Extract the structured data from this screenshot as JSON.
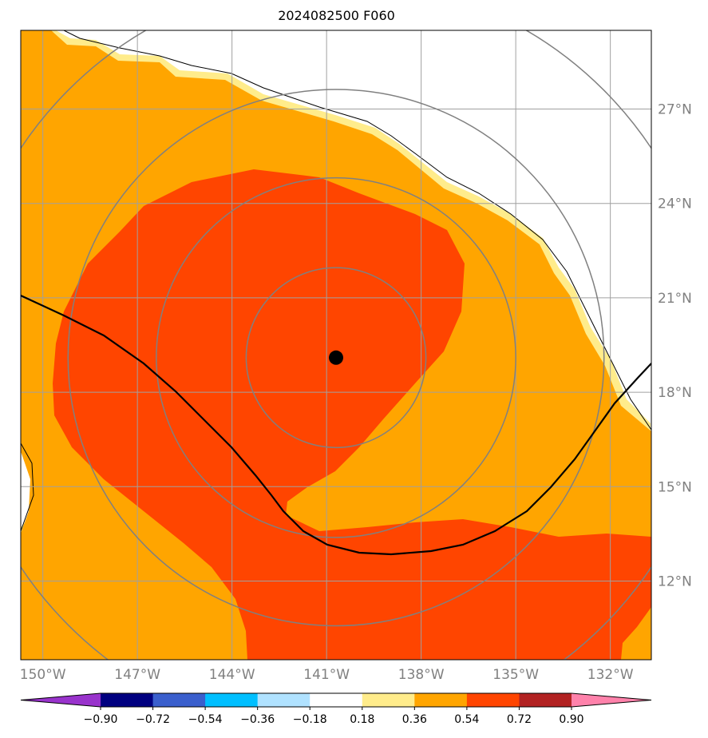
{
  "title": "2024082500 F060",
  "map": {
    "lon_range": [
      -150.7,
      -130.7
    ],
    "lat_range": [
      9.5,
      29.5
    ],
    "lon_ticks": [
      {
        "value": -150,
        "label": "150°W"
      },
      {
        "value": -147,
        "label": "147°W"
      },
      {
        "value": -144,
        "label": "144°W"
      },
      {
        "value": -141,
        "label": "141°W"
      },
      {
        "value": -138,
        "label": "138°W"
      },
      {
        "value": -135,
        "label": "135°W"
      },
      {
        "value": -132,
        "label": "132°W"
      }
    ],
    "lat_ticks": [
      {
        "value": 12,
        "label": "12°N"
      },
      {
        "value": 15,
        "label": "15°N"
      },
      {
        "value": 18,
        "label": "18°N"
      },
      {
        "value": 21,
        "label": "21°N"
      },
      {
        "value": 24,
        "label": "24°N"
      },
      {
        "value": 27,
        "label": "27°N"
      }
    ],
    "storm_center": {
      "lon": -140.7,
      "lat": 19.1
    },
    "range_rings_deg": [
      2.85,
      5.7,
      8.5,
      12.0
    ],
    "colors": {
      "grid": "#a0a0a0",
      "rings": "#808080",
      "track": "#000000",
      "storm_marker": "#000000",
      "coast": "#000000"
    }
  },
  "colorbar": {
    "bins": [
      {
        "from": null,
        "to": -0.9,
        "color": "#9933cc"
      },
      {
        "from": -0.9,
        "to": -0.72,
        "color": "#000080"
      },
      {
        "from": -0.72,
        "to": -0.54,
        "color": "#3a5fcd"
      },
      {
        "from": -0.54,
        "to": -0.36,
        "color": "#00bfff"
      },
      {
        "from": -0.36,
        "to": -0.18,
        "color": "#b0e2ff"
      },
      {
        "from": -0.18,
        "to": 0.18,
        "color": "#ffffff"
      },
      {
        "from": 0.18,
        "to": 0.36,
        "color": "#ffec8b"
      },
      {
        "from": 0.36,
        "to": 0.54,
        "color": "#ffa500"
      },
      {
        "from": 0.54,
        "to": 0.72,
        "color": "#ff4500"
      },
      {
        "from": 0.72,
        "to": 0.9,
        "color": "#b22222"
      },
      {
        "from": 0.9,
        "to": null,
        "color": "#ff82ab"
      }
    ],
    "tick_labels": [
      "−0.90",
      "−0.72",
      "−0.54",
      "−0.36",
      "−0.18",
      "0.18",
      "0.36",
      "0.54",
      "0.72",
      "0.90"
    ]
  }
}
